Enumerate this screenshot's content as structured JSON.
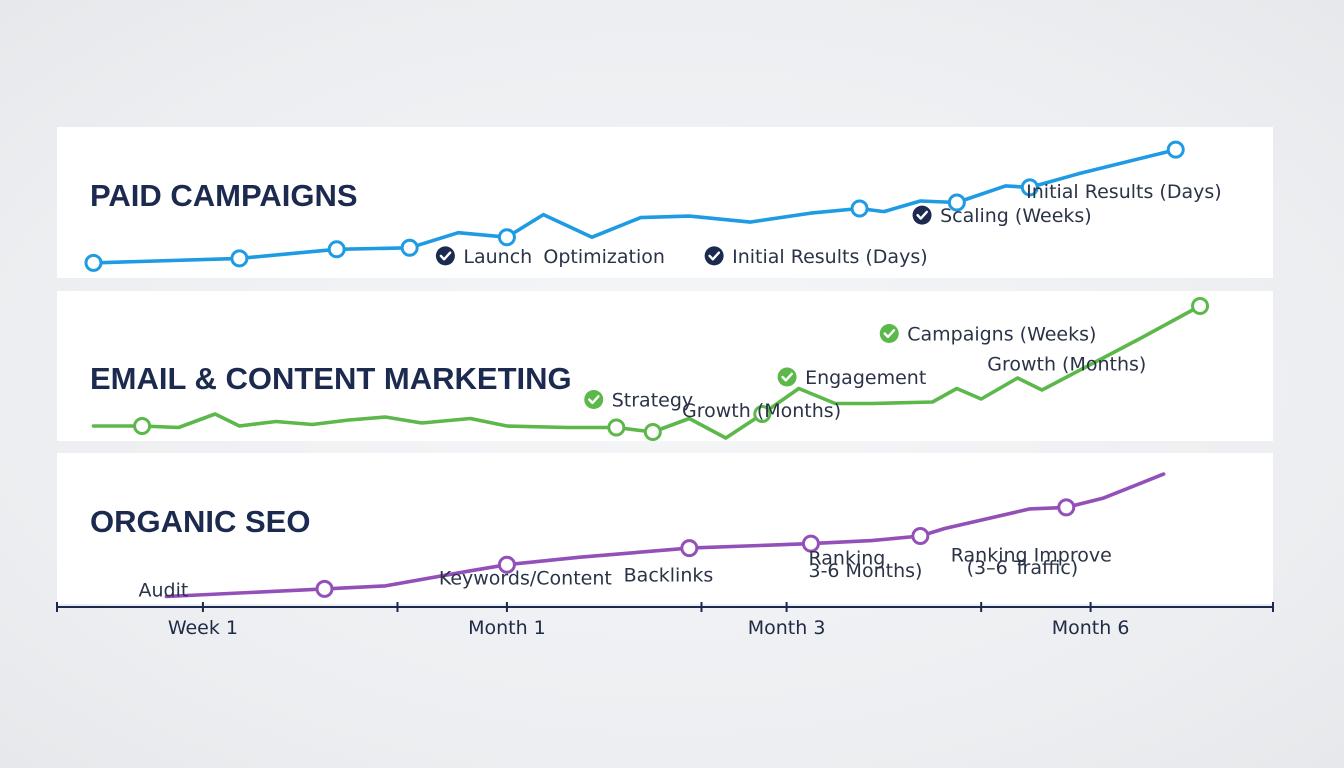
{
  "chart_data": {
    "type": "line",
    "x_axis": {
      "tick_labels": [
        {
          "label": "Week 1",
          "pos": 0.12
        },
        {
          "label": "Month 1",
          "pos": 0.37
        },
        {
          "label": "Month 3",
          "pos": 0.6
        },
        {
          "label": "Month 6",
          "pos": 0.85
        }
      ],
      "minor_ticks": [
        0.0,
        0.12,
        0.28,
        0.37,
        0.53,
        0.6,
        0.76,
        0.85,
        1.0
      ]
    },
    "series": [
      {
        "name": "PAID CAMPAIGNS",
        "color": "#1e9be3",
        "points": [
          [
            0.03,
            0.1
          ],
          [
            0.15,
            0.13
          ],
          [
            0.23,
            0.19
          ],
          [
            0.29,
            0.2
          ],
          [
            0.33,
            0.3
          ],
          [
            0.37,
            0.27
          ],
          [
            0.4,
            0.42
          ],
          [
            0.44,
            0.27
          ],
          [
            0.48,
            0.4
          ],
          [
            0.52,
            0.41
          ],
          [
            0.57,
            0.37
          ],
          [
            0.62,
            0.43
          ],
          [
            0.66,
            0.46
          ],
          [
            0.68,
            0.44
          ],
          [
            0.71,
            0.51
          ],
          [
            0.74,
            0.5
          ],
          [
            0.78,
            0.61
          ],
          [
            0.8,
            0.6
          ],
          [
            0.84,
            0.69
          ],
          [
            0.92,
            0.85
          ]
        ],
        "markers": [
          0,
          1,
          2,
          3,
          5,
          12,
          15,
          17,
          19
        ],
        "annotations": [
          {
            "text": "Launch",
            "pos": [
              0.312,
              0.1
            ],
            "check": true
          },
          {
            "text": "Optimization",
            "pos": [
              0.4,
              0.1
            ],
            "check": false
          },
          {
            "text": "Initial Results (Days)",
            "pos": [
              0.533,
              0.1
            ],
            "check": true
          },
          {
            "text": "Scaling (Weeks)",
            "pos": [
              0.704,
              0.37
            ],
            "check": true
          },
          {
            "text": "Initial Results (Days)",
            "pos": [
              0.797,
              0.53
            ],
            "check": false
          }
        ]
      },
      {
        "name": "EMAIL & CONTENT MARKETING",
        "color": "#5cb84a",
        "points": [
          [
            0.03,
            0.1
          ],
          [
            0.07,
            0.1
          ],
          [
            0.1,
            0.09
          ],
          [
            0.13,
            0.18
          ],
          [
            0.15,
            0.1
          ],
          [
            0.18,
            0.13
          ],
          [
            0.21,
            0.11
          ],
          [
            0.24,
            0.14
          ],
          [
            0.27,
            0.16
          ],
          [
            0.3,
            0.12
          ],
          [
            0.34,
            0.15
          ],
          [
            0.37,
            0.1
          ],
          [
            0.42,
            0.09
          ],
          [
            0.46,
            0.09
          ],
          [
            0.49,
            0.06
          ],
          [
            0.52,
            0.15
          ],
          [
            0.55,
            0.02
          ],
          [
            0.58,
            0.18
          ],
          [
            0.61,
            0.35
          ],
          [
            0.64,
            0.25
          ],
          [
            0.67,
            0.25
          ],
          [
            0.72,
            0.26
          ],
          [
            0.74,
            0.35
          ],
          [
            0.76,
            0.28
          ],
          [
            0.79,
            0.42
          ],
          [
            0.81,
            0.34
          ],
          [
            0.89,
            0.68
          ],
          [
            0.94,
            0.9
          ]
        ],
        "markers": [
          1,
          13,
          14,
          17,
          27
        ],
        "annotations": [
          {
            "text": "Strategy",
            "pos": [
              0.434,
              0.23
            ],
            "check": true
          },
          {
            "text": "Growth (Months)",
            "pos": [
              0.514,
              0.16
            ],
            "check": false
          },
          {
            "text": "Engagement",
            "pos": [
              0.593,
              0.38
            ],
            "check": true
          },
          {
            "text": "Campaigns (Weeks)",
            "pos": [
              0.677,
              0.67
            ],
            "check": true
          },
          {
            "text": "Growth (Months)",
            "pos": [
              0.765,
              0.47
            ],
            "check": false
          }
        ]
      },
      {
        "name": "ORGANIC SEO",
        "color": "#9350b8",
        "points": [
          [
            0.09,
            0.05
          ],
          [
            0.22,
            0.1
          ],
          [
            0.27,
            0.12
          ],
          [
            0.34,
            0.22
          ],
          [
            0.37,
            0.26
          ],
          [
            0.43,
            0.31
          ],
          [
            0.52,
            0.37
          ],
          [
            0.62,
            0.4
          ],
          [
            0.67,
            0.42
          ],
          [
            0.71,
            0.45
          ],
          [
            0.73,
            0.5
          ],
          [
            0.8,
            0.63
          ],
          [
            0.83,
            0.64
          ],
          [
            0.86,
            0.7
          ],
          [
            0.91,
            0.86
          ]
        ],
        "markers": [
          1,
          4,
          6,
          7,
          9,
          12
        ],
        "annotations": [
          {
            "text": "Audit",
            "pos": [
              0.067,
              0.05
            ],
            "check": false
          },
          {
            "text": "Keywords/Content",
            "pos": [
              0.314,
              0.13
            ],
            "check": false
          },
          {
            "text": "Backlinks",
            "pos": [
              0.466,
              0.15
            ],
            "check": false
          },
          {
            "text": "Ranking",
            "pos": [
              0.618,
              0.26
            ],
            "check": false
          },
          {
            "text": "3-6 Months)",
            "pos": [
              0.618,
              0.18
            ],
            "check": false
          },
          {
            "text": "Ranking Improve",
            "pos": [
              0.735,
              0.28
            ],
            "check": false
          },
          {
            "text": "(3–6 Traffic)",
            "pos": [
              0.748,
              0.2
            ],
            "check": false
          }
        ]
      }
    ]
  }
}
